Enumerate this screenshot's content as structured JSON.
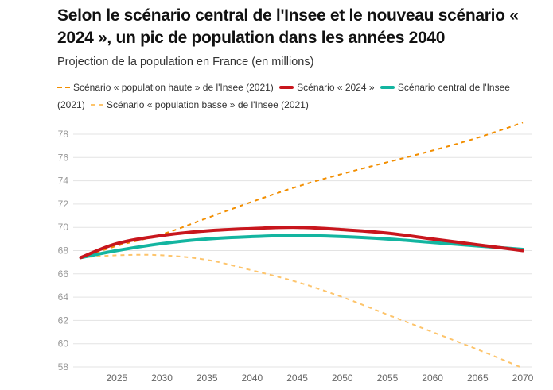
{
  "header": {
    "title": "Selon le scénario central de l'Insee et le nouveau scénario « 2024 », un pic de population dans les années 2040",
    "subtitle": "Projection de la population en France (en millions)"
  },
  "chart_data": {
    "type": "line",
    "title": "Selon le scénario central de l'Insee et le nouveau scénario « 2024 », un pic de population dans les années 2040",
    "subtitle": "Projection de la population en France (en millions)",
    "xlabel": "",
    "ylabel": "",
    "xlim": [
      2021,
      2070
    ],
    "ylim": [
      58,
      79
    ],
    "x_ticks": [
      2025,
      2030,
      2035,
      2040,
      2045,
      2050,
      2055,
      2060,
      2065,
      2070
    ],
    "y_ticks": [
      58,
      60,
      62,
      64,
      66,
      68,
      70,
      72,
      74,
      76,
      78
    ],
    "grid": "horizontal",
    "legend_position": "top",
    "x": [
      2021,
      2025,
      2030,
      2035,
      2040,
      2045,
      2050,
      2055,
      2060,
      2065,
      2070
    ],
    "series": [
      {
        "name": "Scénario « population haute » de l'Insee (2021)",
        "style": "dashed",
        "color": "#f28e00",
        "values": [
          67.4,
          68.4,
          69.4,
          70.8,
          72.2,
          73.5,
          74.6,
          75.6,
          76.6,
          77.7,
          79.0
        ]
      },
      {
        "name": "Scénario « 2024 »",
        "style": "solid",
        "color": "#c8161d",
        "values": [
          67.4,
          68.6,
          69.3,
          69.7,
          69.9,
          70.0,
          69.8,
          69.5,
          69.0,
          68.5,
          68.0
        ]
      },
      {
        "name": "Scénario central de l'Insee (2021)",
        "style": "solid",
        "color": "#13b5a0",
        "values": [
          67.4,
          68.0,
          68.6,
          69.0,
          69.2,
          69.3,
          69.2,
          69.0,
          68.7,
          68.4,
          68.1
        ]
      },
      {
        "name": "Scénario « population basse » de l'Insee (2021)",
        "style": "dashed",
        "color": "#fdc46b",
        "values": [
          67.4,
          67.6,
          67.6,
          67.2,
          66.3,
          65.3,
          64.0,
          62.5,
          61.0,
          59.5,
          57.9
        ]
      }
    ]
  }
}
